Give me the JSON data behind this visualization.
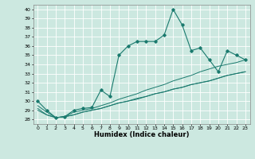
{
  "xlabel": "Humidex (Indice chaleur)",
  "ylabel": "",
  "background_color": "#cce8e0",
  "line_color": "#1a7a6e",
  "grid_color": "#ffffff",
  "xlim": [
    -0.5,
    23.5
  ],
  "ylim": [
    27.5,
    40.5
  ],
  "yticks": [
    28,
    29,
    30,
    31,
    32,
    33,
    34,
    35,
    36,
    37,
    38,
    39,
    40
  ],
  "xticks": [
    0,
    1,
    2,
    3,
    4,
    5,
    6,
    7,
    8,
    9,
    10,
    11,
    12,
    13,
    14,
    15,
    16,
    17,
    18,
    19,
    20,
    21,
    22,
    23
  ],
  "series": [
    [
      30.0,
      29.0,
      28.2,
      28.3,
      29.0,
      29.2,
      29.3,
      31.2,
      30.5,
      35.0,
      36.0,
      36.5,
      36.5,
      36.5,
      37.2,
      40.0,
      38.3,
      35.5,
      35.8,
      34.5,
      33.2,
      35.5,
      35.0,
      34.5
    ],
    [
      29.5,
      28.8,
      28.2,
      28.3,
      28.8,
      29.0,
      29.2,
      29.5,
      29.8,
      30.2,
      30.5,
      30.8,
      31.2,
      31.5,
      31.8,
      32.2,
      32.5,
      32.8,
      33.2,
      33.5,
      33.8,
      34.0,
      34.2,
      34.5
    ],
    [
      29.2,
      28.5,
      28.2,
      28.3,
      28.5,
      28.8,
      29.0,
      29.2,
      29.5,
      29.8,
      30.0,
      30.3,
      30.5,
      30.8,
      31.0,
      31.3,
      31.5,
      31.8,
      32.0,
      32.2,
      32.5,
      32.8,
      33.0,
      33.2
    ],
    [
      29.0,
      28.5,
      28.2,
      28.3,
      28.5,
      28.8,
      29.0,
      29.2,
      29.5,
      29.8,
      30.0,
      30.2,
      30.5,
      30.8,
      31.0,
      31.3,
      31.5,
      31.8,
      32.0,
      32.2,
      32.5,
      32.8,
      33.0,
      33.2
    ]
  ],
  "has_markers": [
    true,
    false,
    false,
    false
  ],
  "figsize": [
    3.2,
    2.0
  ],
  "dpi": 100,
  "title_fontsize": 7,
  "xlabel_fontsize": 6,
  "tick_fontsize": 4.5
}
